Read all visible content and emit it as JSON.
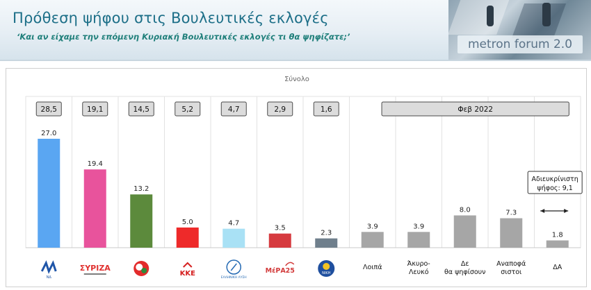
{
  "header": {
    "title": "Πρόθεση ψήφου στις Βουλευτικές εκλογές",
    "subtitle": "‘Και αν είχαμε την επόμενη Κυριακή Βουλευτικές εκλογές τι θα ψηφίζατε;’",
    "brand": "metron forum 2.0"
  },
  "colors": {
    "nd": "#5aa6f2",
    "syriza": "#e8539c",
    "kinal": "#5c8a3c",
    "kke": "#ee2a2a",
    "el": "#a9e1f5",
    "mera25": "#d63a3f",
    "niki": "#6f7f8c",
    "gray": "#a6a6a6"
  },
  "chart_data": {
    "type": "bar",
    "title": "Σύνολο",
    "categories": [
      "ΝΔ",
      "ΣΥΡΙΖΑ",
      "ΚΙΝΑΛ",
      "ΚΚΕ",
      "Ελληνική Λύση",
      "ΜέΡΑ25",
      "ΝΙΚΗ",
      "Λοιπά",
      "Άκυρο-Λευκό",
      "Δε θα ψηφίσουν",
      "Αναποφάσιστοι",
      "ΔΑ"
    ],
    "category_labels": [
      "",
      "",
      "",
      "",
      "",
      "",
      "",
      "Λοιπά",
      "Άκυρο- Λευκό",
      "Δε θα ψηφίσουν",
      "Αναποφά σιστοι",
      "ΔΑ"
    ],
    "logo_texts": [
      "ΝΔ",
      "ΣΥΡΙΖΑ",
      "",
      "ΚΚΕ",
      "ΕΛΛΗΝΙΚΗ ΛΥΣΗ",
      "ΜέΡΑ25",
      "ΝΙΚΗ",
      "",
      "",
      "",
      "",
      ""
    ],
    "series": [
      {
        "values": [
          27.0,
          19.4,
          13.2,
          5.0,
          4.7,
          3.5,
          2.3,
          3.9,
          3.9,
          8.0,
          7.3,
          1.8
        ],
        "data_labels": [
          "27.0",
          "19.4",
          "13.2",
          "5.0",
          "4.7",
          "3.5",
          "2.3",
          "3.9",
          "3.9",
          "8.0",
          "7.3",
          "1.8"
        ],
        "colors": [
          "#5aa6f2",
          "#e8539c",
          "#5c8a3c",
          "#ee2a2a",
          "#a9e1f5",
          "#d63a3f",
          "#6f7f8c",
          "#a6a6a6",
          "#a6a6a6",
          "#a6a6a6",
          "#a6a6a6",
          "#a6a6a6"
        ]
      }
    ],
    "boxed_values": [
      "28,5",
      "19,1",
      "14,5",
      "5,2",
      "4,7",
      "2,9",
      "1,6"
    ],
    "date_label": "Φεβ 2022",
    "annotation": [
      "Αδιευκρίνιστη",
      "ψήφος: 9,1"
    ],
    "ylim": [
      0,
      30
    ],
    "grid": true,
    "legend": "none"
  }
}
